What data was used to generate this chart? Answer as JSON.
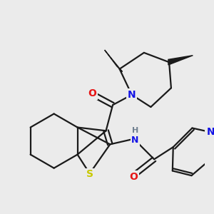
{
  "background_color": "#ebebeb",
  "bond_color": "#1a1a1a",
  "bond_width": 1.6,
  "atom_colors": {
    "N": "#1414e6",
    "O": "#e61414",
    "S": "#c8c800",
    "H": "#708090",
    "C": "#1a1a1a"
  },
  "figsize": [
    3.0,
    3.0
  ],
  "dpi": 100
}
